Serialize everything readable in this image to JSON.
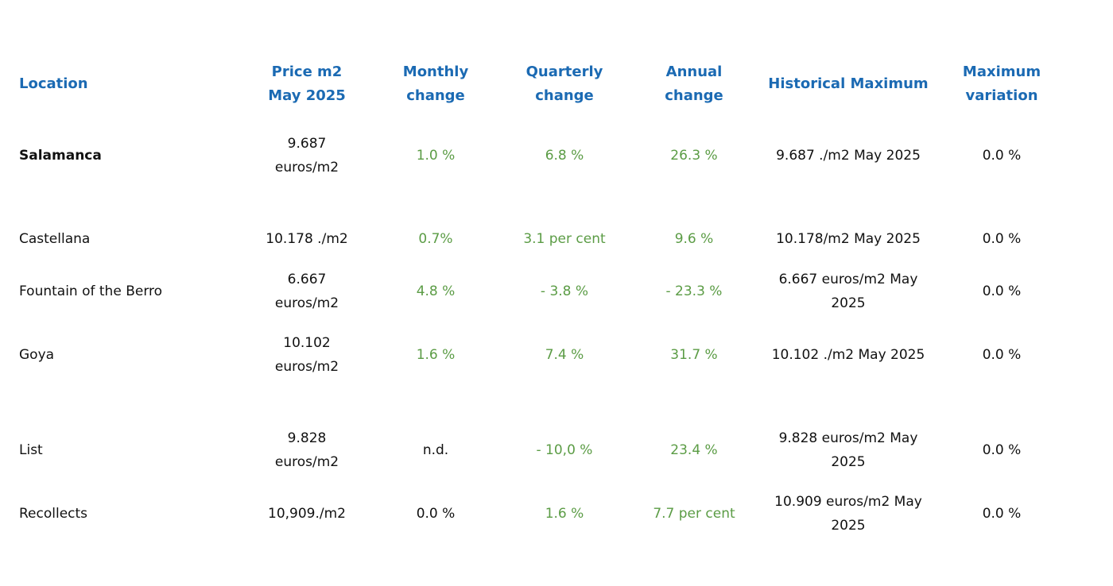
{
  "table": {
    "header": [
      "Location",
      "Price m2 May 2025",
      "Monthly change",
      "Quarterly change",
      "Annual change",
      "Historical Maximum",
      "Maximum variation"
    ],
    "rows": [
      [
        "Salamanca",
        "9.687 euros/m2",
        "1.0 %",
        "6.8 %",
        "26.3 %",
        "9.687 ./m2 May 2025",
        "0.0 %"
      ],
      [
        "Castellana",
        "10.178 ./m2",
        "0.7%",
        "3.1 per cent",
        "9.6 %",
        "10.178/m2 May 2025",
        "0.0 %"
      ],
      [
        "Fountain of the Berro",
        "6.667 euros/m2",
        "4.8 %",
        "- 3.8 %",
        "- 23.3 %",
        "6.667 euros/m2 May 2025",
        "0.0 %"
      ],
      [
        "Goya",
        "10.102 euros/m2",
        "1.6 %",
        "7.4 %",
        "31.7 %",
        "10.102 ./m2 May 2025",
        "0.0 %"
      ],
      [
        "List",
        "9.828 euros/m2",
        "n.d.",
        "- 10,0 %",
        "23.4 %",
        "9.828 euros/m2 May 2025",
        "0.0 %"
      ],
      [
        "Recollects",
        "10,909./m2",
        "0.0 %",
        "1.6 %",
        "7.7 per cent",
        "10.909 euros/m2 May 2025",
        "0.0 %"
      ]
    ]
  }
}
